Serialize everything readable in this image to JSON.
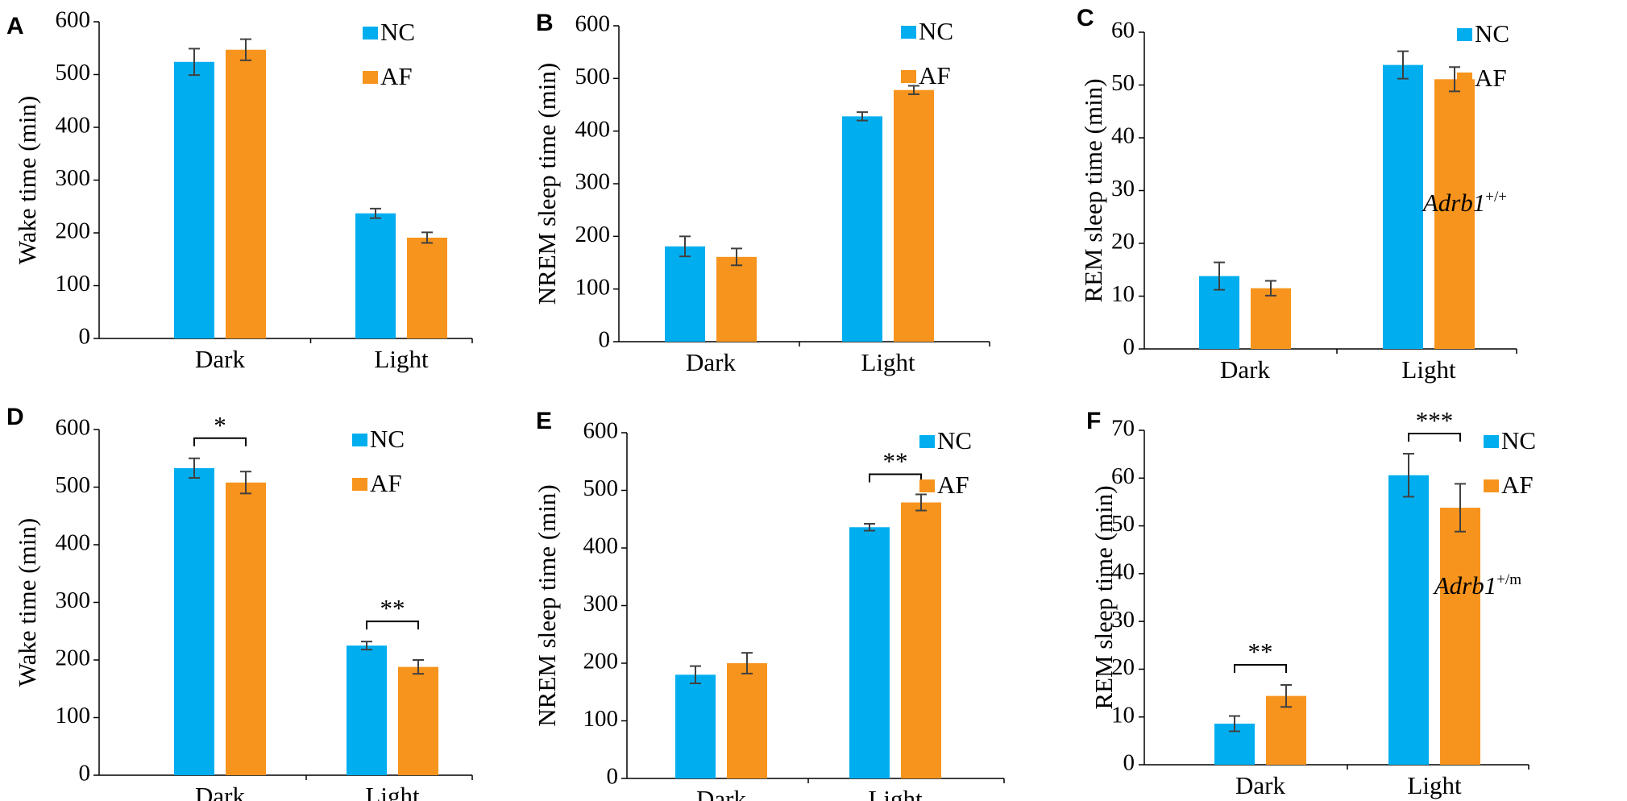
{
  "colors": {
    "NC": "#00aeef",
    "AF": "#f7941d",
    "axis": "#000000",
    "error": "#404040"
  },
  "legend": {
    "NC": "NC",
    "AF": "AF"
  },
  "chart_data": [
    {
      "panel": "A",
      "type": "bar",
      "categories": [
        "Dark",
        "Light"
      ],
      "series": [
        {
          "name": "NC",
          "values": [
            524,
            237
          ],
          "errors": [
            25,
            9
          ]
        },
        {
          "name": "AF",
          "values": [
            547,
            191
          ],
          "errors": [
            20,
            10
          ]
        }
      ],
      "ylabel": "Wake time (min)",
      "ylim": [
        0,
        600
      ],
      "yticks": [
        "0",
        "100",
        "200",
        "300",
        "400",
        "500",
        "600"
      ],
      "legend_position": "top-right",
      "significance": []
    },
    {
      "panel": "B",
      "type": "bar",
      "categories": [
        "Dark",
        "Light"
      ],
      "series": [
        {
          "name": "NC",
          "values": [
            181,
            428
          ],
          "errors": [
            19,
            8
          ]
        },
        {
          "name": "AF",
          "values": [
            161,
            478
          ],
          "errors": [
            16,
            8
          ]
        }
      ],
      "ylabel": "NREM sleep time (min)",
      "ylim": [
        0,
        600
      ],
      "yticks": [
        "0",
        "100",
        "200",
        "300",
        "400",
        "500",
        "600"
      ],
      "legend_position": "top-right",
      "significance": []
    },
    {
      "panel": "C",
      "type": "bar",
      "categories": [
        "Dark",
        "Light"
      ],
      "series": [
        {
          "name": "NC",
          "values": [
            13.8,
            53.8
          ],
          "errors": [
            2.6,
            2.6
          ]
        },
        {
          "name": "AF",
          "values": [
            11.5,
            51.1
          ],
          "errors": [
            1.4,
            2.3
          ]
        }
      ],
      "ylabel": "REM sleep time (min)",
      "ylim": [
        0,
        60
      ],
      "yticks": [
        "0",
        "10",
        "20",
        "30",
        "40",
        "50",
        "60"
      ],
      "legend_position": "top-right",
      "genotype": {
        "base": "Adrb1",
        "sup": "+/+"
      },
      "significance": []
    },
    {
      "panel": "D",
      "type": "bar",
      "categories": [
        "Dark",
        "Light"
      ],
      "series": [
        {
          "name": "NC",
          "values": [
            533,
            225
          ],
          "errors": [
            17,
            7
          ]
        },
        {
          "name": "AF",
          "values": [
            508,
            188
          ],
          "errors": [
            19,
            12
          ]
        }
      ],
      "ylabel": "Wake time (min)",
      "ylim": [
        0,
        600
      ],
      "yticks": [
        "0",
        "100",
        "200",
        "300",
        "400",
        "500",
        "600"
      ],
      "legend_position": "top-right",
      "significance": [
        {
          "category": 0,
          "label": "*"
        },
        {
          "category": 1,
          "label": "**"
        }
      ]
    },
    {
      "panel": "E",
      "type": "bar",
      "categories": [
        "Dark",
        "Light"
      ],
      "series": [
        {
          "name": "NC",
          "values": [
            180,
            436
          ],
          "errors": [
            15,
            6
          ]
        },
        {
          "name": "AF",
          "values": [
            200,
            479
          ],
          "errors": [
            18,
            14
          ]
        }
      ],
      "ylabel": "NREM sleep time (min)",
      "ylim": [
        0,
        600
      ],
      "yticks": [
        "0",
        "100",
        "200",
        "300",
        "400",
        "500",
        "600"
      ],
      "legend_position": "top-right",
      "significance": [
        {
          "category": 1,
          "label": "**"
        }
      ]
    },
    {
      "panel": "F",
      "type": "bar",
      "categories": [
        "Dark",
        "Light"
      ],
      "series": [
        {
          "name": "NC",
          "values": [
            8.6,
            60.6
          ],
          "errors": [
            1.6,
            4.5
          ]
        },
        {
          "name": "AF",
          "values": [
            14.4,
            53.8
          ],
          "errors": [
            2.3,
            5.0
          ]
        }
      ],
      "ylabel": "REM sleep time (min)",
      "ylim": [
        0,
        70
      ],
      "yticks": [
        "0",
        "10",
        "20",
        "30",
        "40",
        "50",
        "60",
        "70"
      ],
      "legend_position": "top-right",
      "genotype": {
        "base": "Adrb1",
        "sup": "+/m"
      },
      "significance": [
        {
          "category": 0,
          "label": "**"
        },
        {
          "category": 1,
          "label": "***"
        }
      ]
    }
  ]
}
